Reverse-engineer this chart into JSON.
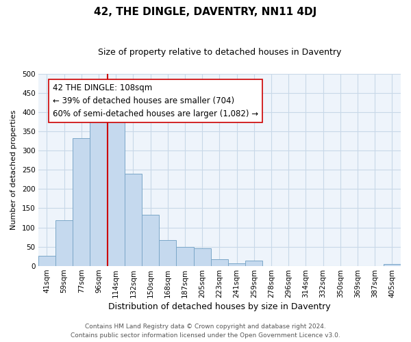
{
  "title": "42, THE DINGLE, DAVENTRY, NN11 4DJ",
  "subtitle": "Size of property relative to detached houses in Daventry",
  "xlabel": "Distribution of detached houses by size in Daventry",
  "ylabel": "Number of detached properties",
  "bar_labels": [
    "41sqm",
    "59sqm",
    "77sqm",
    "96sqm",
    "114sqm",
    "132sqm",
    "150sqm",
    "168sqm",
    "187sqm",
    "205sqm",
    "223sqm",
    "241sqm",
    "259sqm",
    "278sqm",
    "296sqm",
    "314sqm",
    "332sqm",
    "350sqm",
    "369sqm",
    "387sqm",
    "405sqm"
  ],
  "bar_values": [
    27,
    118,
    332,
    390,
    375,
    240,
    133,
    68,
    50,
    45,
    17,
    7,
    13,
    0,
    0,
    0,
    0,
    0,
    0,
    0,
    5
  ],
  "bar_color": "#c5d9ee",
  "bar_edge_color": "#7ba7c8",
  "vline_x_index": 4,
  "vline_color": "#cc0000",
  "ylim": [
    0,
    500
  ],
  "yticks": [
    0,
    50,
    100,
    150,
    200,
    250,
    300,
    350,
    400,
    450,
    500
  ],
  "annotation_title": "42 THE DINGLE: 108sqm",
  "annotation_line1": "← 39% of detached houses are smaller (704)",
  "annotation_line2": "60% of semi-detached houses are larger (1,082) →",
  "annotation_box_color": "#ffffff",
  "annotation_box_edge": "#cc0000",
  "footer_line1": "Contains HM Land Registry data © Crown copyright and database right 2024.",
  "footer_line2": "Contains public sector information licensed under the Open Government Licence v3.0.",
  "title_fontsize": 11,
  "subtitle_fontsize": 9,
  "xlabel_fontsize": 9,
  "ylabel_fontsize": 8,
  "tick_fontsize": 7.5,
  "annotation_fontsize": 8.5,
  "footer_fontsize": 6.5,
  "background_color": "#ffffff",
  "plot_bg_color": "#eef4fb",
  "grid_color": "#c8d8e8"
}
